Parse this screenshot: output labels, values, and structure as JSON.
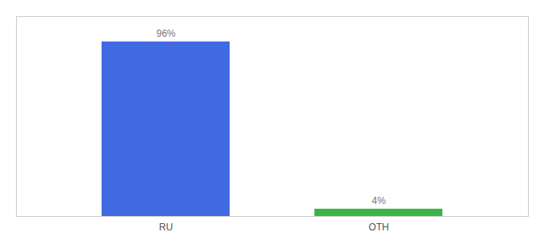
{
  "chart_data": {
    "type": "bar",
    "categories": [
      "RU",
      "OTH"
    ],
    "values": [
      96,
      4
    ],
    "value_labels": [
      "96%",
      "4%"
    ],
    "colors": [
      "#4169e1",
      "#3cb34a"
    ],
    "ylim": [
      0,
      110
    ],
    "data_labels": true,
    "tick_labels": "x"
  }
}
